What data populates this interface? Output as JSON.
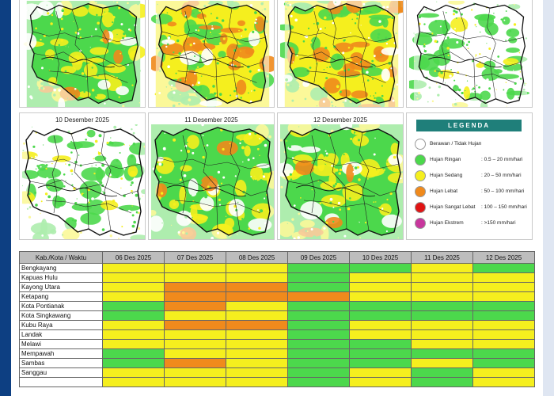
{
  "colors": {
    "ringan": "#4cd84c",
    "sedang": "#f5ef1e",
    "lebat": "#f08a1c",
    "sangat_lebat": "#e01414",
    "ekstrem": "#c8379d",
    "berawan": "#ffffff"
  },
  "maps": [
    {
      "title": "",
      "theme": "moderate"
    },
    {
      "title": "",
      "theme": "wet"
    },
    {
      "title": "",
      "theme": "wet"
    },
    {
      "title": "",
      "theme": "dry"
    },
    {
      "title": "10 Desember 2025",
      "theme": "dry"
    },
    {
      "title": "11 Desember 2025",
      "theme": "moderate"
    },
    {
      "title": "12 Desember 2025",
      "theme": "moderate"
    }
  ],
  "legend": {
    "title": "LEGENDA",
    "items": [
      {
        "label": "Berawan / Tidak Hujan",
        "range": "",
        "color": "#ffffff"
      },
      {
        "label": "Hujan Ringan",
        "range": ": 0.5 – 20 mm/hari",
        "color": "#4cd84c"
      },
      {
        "label": "Hujan Sedang",
        "range": ": 20 – 50 mm/hari",
        "color": "#f5ef1e"
      },
      {
        "label": "Hujan Lebat",
        "range": ": 50 – 100 mm/hari",
        "color": "#f08a1c"
      },
      {
        "label": "Hujan Sangat Lebat",
        "range": ": 100 – 150 mm/hari",
        "color": "#e01414"
      },
      {
        "label": "Hujan Ekstrem",
        "range": ": >150 mm/hari",
        "color": "#c8379d"
      }
    ]
  },
  "table": {
    "header": [
      "Kab./Kota / Waktu",
      "06 Des 2025",
      "07 Des 2025",
      "08 Des 2025",
      "09 Des 2025",
      "10 Des 2025",
      "11 Des 2025",
      "12 Des 2025"
    ],
    "rows": [
      {
        "name": "Bengkayang",
        "cells": [
          "sedang",
          "sedang",
          "sedang",
          "ringan",
          "ringan",
          "sedang",
          "ringan"
        ]
      },
      {
        "name": "Kapuas Hulu",
        "cells": [
          "sedang",
          "sedang",
          "sedang",
          "ringan",
          "sedang",
          "sedang",
          "sedang"
        ]
      },
      {
        "name": "Kayong Utara",
        "cells": [
          "sedang",
          "lebat",
          "lebat",
          "ringan",
          "sedang",
          "sedang",
          "sedang"
        ]
      },
      {
        "name": "Ketapang",
        "cells": [
          "sedang",
          "lebat",
          "lebat",
          "lebat",
          "sedang",
          "sedang",
          "sedang"
        ]
      },
      {
        "name": "Kota Pontianak",
        "cells": [
          "ringan",
          "lebat",
          "sedang",
          "ringan",
          "ringan",
          "ringan",
          "ringan"
        ]
      },
      {
        "name": "Kota Singkawang",
        "cells": [
          "ringan",
          "sedang",
          "sedang",
          "ringan",
          "ringan",
          "ringan",
          "ringan"
        ]
      },
      {
        "name": "Kubu Raya",
        "cells": [
          "sedang",
          "lebat",
          "lebat",
          "ringan",
          "sedang",
          "sedang",
          "sedang"
        ]
      },
      {
        "name": "Landak",
        "cells": [
          "sedang",
          "sedang",
          "sedang",
          "ringan",
          "sedang",
          "sedang",
          "sedang"
        ]
      },
      {
        "name": "Melawi",
        "cells": [
          "sedang",
          "sedang",
          "sedang",
          "ringan",
          "ringan",
          "sedang",
          "sedang"
        ]
      },
      {
        "name": "Mempawah",
        "cells": [
          "ringan",
          "sedang",
          "sedang",
          "ringan",
          "ringan",
          "ringan",
          "ringan"
        ]
      },
      {
        "name": "Sambas",
        "cells": [
          "ringan",
          "lebat",
          "sedang",
          "ringan",
          "ringan",
          "sedang",
          "ringan"
        ]
      },
      {
        "name": "Sanggau",
        "cells": [
          "sedang",
          "sedang",
          "sedang",
          "ringan",
          "sedang",
          "ringan",
          "sedang"
        ]
      },
      {
        "name": "",
        "cells": [
          "sedang",
          "sedang",
          "sedang",
          "ringan",
          "sedang",
          "ringan",
          "sedang"
        ]
      }
    ]
  }
}
